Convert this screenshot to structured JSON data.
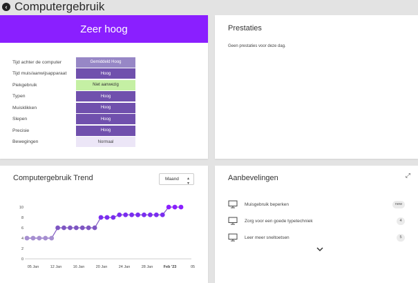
{
  "header": {
    "back_icon": "back-arrow-icon",
    "title": "Computergebruik"
  },
  "usage": {
    "banner": "Zeer hoog",
    "banner_color": "#8a1fff",
    "rows": [
      {
        "label": "Tijd achter de computer",
        "value": "Gemiddeld Hoog",
        "color": "#9787c6"
      },
      {
        "label": "Tijd muis/aanwijsapparaat",
        "value": "Hoog",
        "color": "#7050ad"
      },
      {
        "label": "Piekgebruik",
        "value": "Niet aanwezig",
        "color": "#c5f0a4",
        "text_color": "#333333"
      },
      {
        "label": "Typen",
        "value": "Hoog",
        "color": "#7050ad"
      },
      {
        "label": "Muisklikken",
        "value": "Hoog",
        "color": "#7050ad"
      },
      {
        "label": "Slepen",
        "value": "Hoog",
        "color": "#7050ad"
      },
      {
        "label": "Precisie",
        "value": "Hoog",
        "color": "#7050ad"
      },
      {
        "label": "Bewegingen",
        "value": "Normaal",
        "color": "#ece6f7",
        "text_color": "#444444"
      }
    ]
  },
  "achievements": {
    "title": "Prestaties",
    "empty_text": "Geen prestaties voor deze dag."
  },
  "trend": {
    "title": "Computergebruik Trend",
    "period": "Maand",
    "period_icon": "chevron-updown-icon"
  },
  "chart_data": {
    "type": "line",
    "title": "Computergebruik Trend",
    "xlabel": "",
    "ylabel": "",
    "ylim": [
      0,
      10
    ],
    "yticks": [
      0,
      2,
      4,
      6,
      8,
      10
    ],
    "xtick_labels": [
      "05 Jan",
      "12 Jan",
      "16 Jan",
      "20 Jan",
      "24 Jan",
      "28 Jan",
      "Feb '23",
      "05"
    ],
    "grid": false,
    "series": [
      {
        "values": [
          4,
          4,
          4,
          4,
          4,
          6,
          6,
          6,
          6,
          6,
          6,
          6,
          8,
          8,
          8,
          8.5,
          8.5,
          8.5,
          8.5,
          8.5,
          8.5,
          8.5,
          8.5,
          10,
          10,
          10
        ],
        "colors": [
          "#a68fd0",
          "#a68fd0",
          "#a68fd0",
          "#a68fd0",
          "#a68fd0",
          "#7e56c2",
          "#7e56c2",
          "#7e56c2",
          "#7e56c2",
          "#7e56c2",
          "#7e56c2",
          "#7e56c2",
          "#7a2df0",
          "#7a2df0",
          "#7a2df0",
          "#7a2df0",
          "#7a2df0",
          "#7a2df0",
          "#7a2df0",
          "#7a2df0",
          "#7a2df0",
          "#7a2df0",
          "#7a2df0",
          "#8a1fff",
          "#8a1fff",
          "#8a1fff"
        ]
      }
    ]
  },
  "recommendations": {
    "title": "Aanbevelingen",
    "expand_icon": "expand-icon",
    "items": [
      {
        "icon": "monitor-icon",
        "label": "Muisgebruik beperken",
        "badge": "new"
      },
      {
        "icon": "monitor-icon",
        "label": "Zorg voor een goede typetechniek",
        "badge": "4"
      },
      {
        "icon": "monitor-icon",
        "label": "Leer meer sneltoetsen",
        "badge": "5"
      }
    ],
    "more_icon": "chevron-down-icon"
  }
}
